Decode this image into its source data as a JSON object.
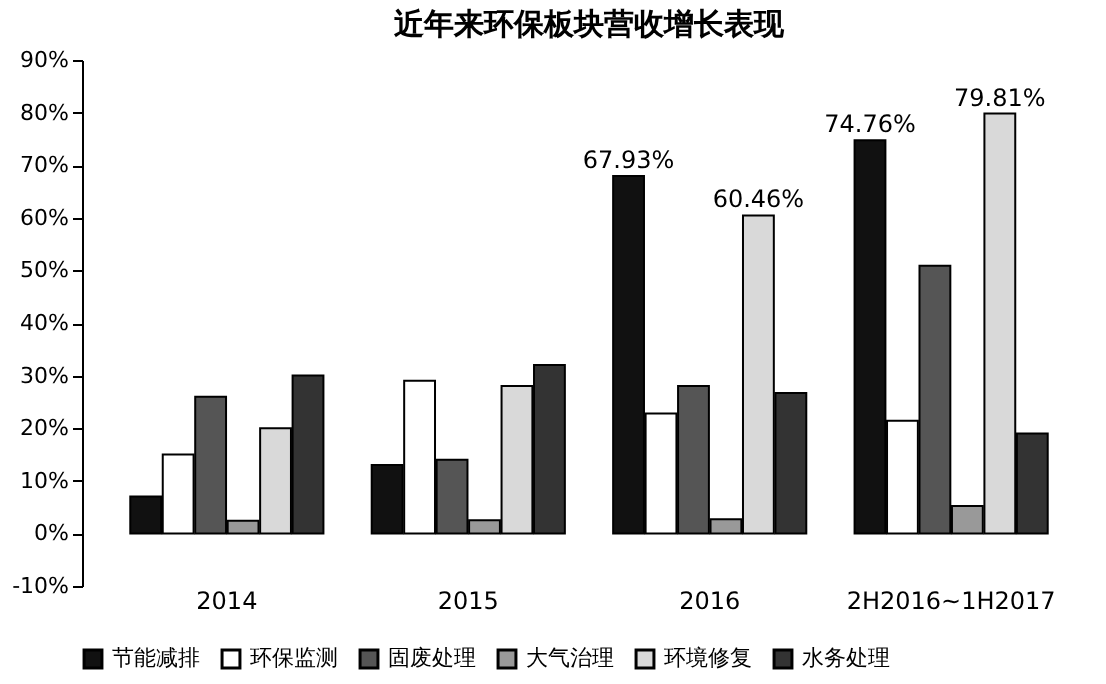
{
  "chart_data": {
    "type": "bar",
    "title": "近年来环保板块营收增长表现",
    "categories": [
      "2014",
      "2015",
      "2016",
      "2H2016~1H2017"
    ],
    "series": [
      {
        "name": "节能减排",
        "color": "#111111",
        "values": [
          7,
          13,
          67.93,
          74.76
        ],
        "value_labels": [
          null,
          null,
          "67.93%",
          "74.76%"
        ]
      },
      {
        "name": "环保监测",
        "color": "#ffffff",
        "values": [
          15,
          29,
          22.8,
          21.4
        ]
      },
      {
        "name": "固废处理",
        "color": "#555555",
        "values": [
          26,
          14,
          28,
          50.9
        ]
      },
      {
        "name": "大气治理",
        "color": "#999999",
        "values": [
          2.4,
          2.5,
          2.7,
          5.2
        ]
      },
      {
        "name": "环境修复",
        "color": "#d9d9d9",
        "values": [
          20,
          28,
          60.46,
          79.81
        ],
        "value_labels": [
          null,
          null,
          "60.46%",
          "79.81%"
        ]
      },
      {
        "name": "水务处理",
        "color": "#333333",
        "values": [
          30,
          32,
          26.7,
          19
        ]
      }
    ],
    "ylim": [
      -10,
      90
    ],
    "yticks": [
      {
        "value": -10,
        "label": "-10%"
      },
      {
        "value": 0,
        "label": "0%"
      },
      {
        "value": 10,
        "label": "10%"
      },
      {
        "value": 20,
        "label": "20%"
      },
      {
        "value": 30,
        "label": "30%"
      },
      {
        "value": 40,
        "label": "40%"
      },
      {
        "value": 50,
        "label": "50%"
      },
      {
        "value": 60,
        "label": "60%"
      },
      {
        "value": 70,
        "label": "70%"
      },
      {
        "value": 80,
        "label": "80%"
      },
      {
        "value": 90,
        "label": "90%"
      }
    ],
    "grid": false,
    "legend": "bottom"
  }
}
